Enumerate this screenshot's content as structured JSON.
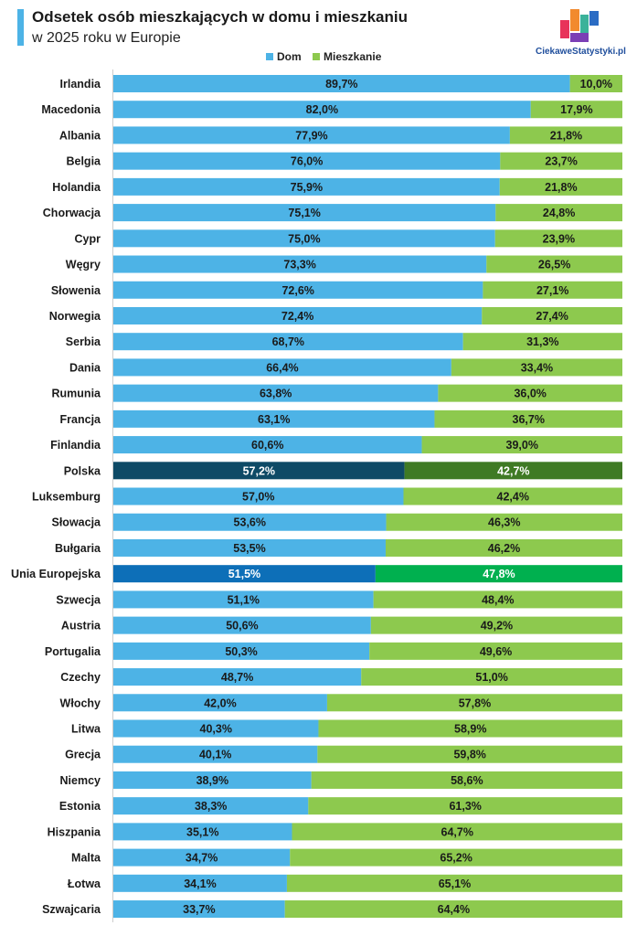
{
  "title": "Odsetek osób mieszkających w domu i mieszkaniu",
  "subtitle": "w 2025 roku w Europie",
  "logo_text": "CiekaweStatystyki.pl",
  "colors": {
    "dom": "#4db3e6",
    "mieszkanie": "#8dc94e",
    "dom_highlight_polska": "#0e4a66",
    "mieszkanie_highlight_polska": "#3f7a24",
    "dom_highlight_ue": "#0d6fb8",
    "mieszkanie_highlight_ue": "#00b04f"
  },
  "legend": [
    {
      "name": "Dom",
      "color": "#4db3e6"
    },
    {
      "name": "Mieszkanie",
      "color": "#8dc94e"
    }
  ],
  "chart_data": {
    "type": "bar",
    "orientation": "horizontal",
    "stacked": true,
    "xlim": [
      0,
      100
    ],
    "legend_position": "top-center",
    "categories": [
      "Irlandia",
      "Macedonia",
      "Albania",
      "Belgia",
      "Holandia",
      "Chorwacja",
      "Cypr",
      "Węgry",
      "Słowenia",
      "Norwegia",
      "Serbia",
      "Dania",
      "Rumunia",
      "Francja",
      "Finlandia",
      "Polska",
      "Luksemburg",
      "Słowacja",
      "Bułgaria",
      "Unia Europejska",
      "Szwecja",
      "Austria",
      "Portugalia",
      "Czechy",
      "Włochy",
      "Litwa",
      "Grecja",
      "Niemcy",
      "Estonia",
      "Hiszpania",
      "Malta",
      "Łotwa",
      "Szwajcaria"
    ],
    "highlighted": [
      "Polska",
      "Unia Europejska"
    ],
    "series": [
      {
        "name": "Dom",
        "values": [
          89.7,
          82.0,
          77.9,
          76.0,
          75.9,
          75.1,
          75.0,
          73.3,
          72.6,
          72.4,
          68.7,
          66.4,
          63.8,
          63.1,
          60.6,
          57.2,
          57.0,
          53.6,
          53.5,
          51.5,
          51.1,
          50.6,
          50.3,
          48.7,
          42.0,
          40.3,
          40.1,
          38.9,
          38.3,
          35.1,
          34.7,
          34.1,
          33.7
        ],
        "labels": [
          "89,7%",
          "82,0%",
          "77,9%",
          "76,0%",
          "75,9%",
          "75,1%",
          "75,0%",
          "73,3%",
          "72,6%",
          "72,4%",
          "68,7%",
          "66,4%",
          "63,8%",
          "63,1%",
          "60,6%",
          "57,2%",
          "57,0%",
          "53,6%",
          "53,5%",
          "51,5%",
          "51,1%",
          "50,6%",
          "50,3%",
          "48,7%",
          "42,0%",
          "40,3%",
          "40,1%",
          "38,9%",
          "38,3%",
          "35,1%",
          "34,7%",
          "34,1%",
          "33,7%"
        ]
      },
      {
        "name": "Mieszkanie",
        "values": [
          10.0,
          17.9,
          21.8,
          23.7,
          21.8,
          24.8,
          23.9,
          26.5,
          27.1,
          27.4,
          31.3,
          33.4,
          36.0,
          36.7,
          39.0,
          42.7,
          42.4,
          46.3,
          46.2,
          47.8,
          48.4,
          49.2,
          49.6,
          51.0,
          57.8,
          58.9,
          59.8,
          58.6,
          61.3,
          64.7,
          65.2,
          65.1,
          64.4
        ],
        "labels": [
          "10,0%",
          "17,9%",
          "21,8%",
          "23,7%",
          "21,8%",
          "24,8%",
          "23,9%",
          "26,5%",
          "27,1%",
          "27,4%",
          "31,3%",
          "33,4%",
          "36,0%",
          "36,7%",
          "39,0%",
          "42,7%",
          "42,4%",
          "46,3%",
          "46,2%",
          "47,8%",
          "48,4%",
          "49,2%",
          "49,6%",
          "51,0%",
          "57,8%",
          "58,9%",
          "59,8%",
          "58,6%",
          "61,3%",
          "64,7%",
          "65,2%",
          "65,1%",
          "64,4%"
        ]
      }
    ]
  }
}
